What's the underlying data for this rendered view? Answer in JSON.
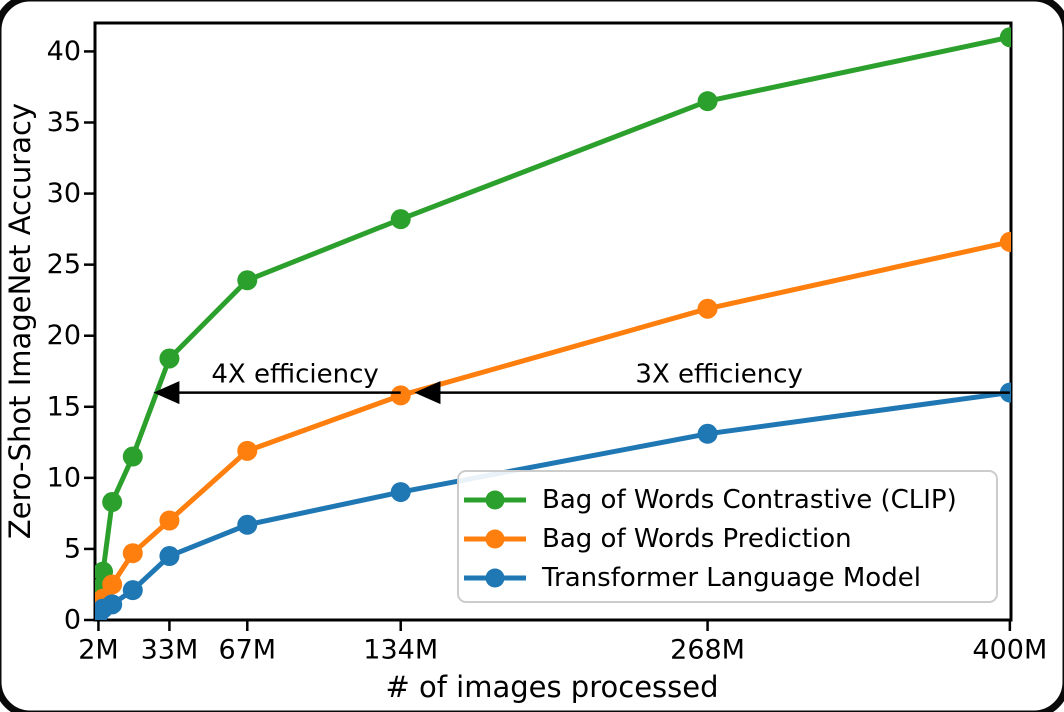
{
  "figure": {
    "background": "#ffffff",
    "border_color": "#000000",
    "text_color": "#000000"
  },
  "chart_data": {
    "type": "line",
    "title": "",
    "xlabel": "# of images processed",
    "ylabel": "Zero-Shot ImageNet Accuracy",
    "x_unit": "millions of images",
    "x_millions": [
      2,
      4,
      8,
      17,
      33,
      67,
      134,
      268,
      400
    ],
    "x_tick_values": [
      2,
      33,
      67,
      134,
      268,
      400
    ],
    "x_tick_labels": [
      "2M",
      "33M",
      "67M",
      "134M",
      "268M",
      "400M"
    ],
    "y_tick_values": [
      0,
      5,
      10,
      15,
      20,
      25,
      30,
      35,
      40
    ],
    "xlim_millions": [
      0.5,
      400.5
    ],
    "ylim": [
      0,
      42
    ],
    "grid": false,
    "legend_position": "lower right",
    "series": [
      {
        "name": "Bag of Words Contrastive (CLIP)",
        "color": "#2ca02c",
        "values": [
          2.2,
          3.4,
          8.3,
          11.5,
          18.4,
          23.9,
          28.2,
          36.5,
          41.0
        ]
      },
      {
        "name": "Bag of Words Prediction",
        "color": "#ff7f0e",
        "values": [
          1.0,
          1.5,
          2.5,
          4.7,
          7.0,
          11.9,
          15.8,
          21.9,
          26.6
        ]
      },
      {
        "name": "Transformer Language Model",
        "color": "#1f77b4",
        "values": [
          0.4,
          0.8,
          1.1,
          2.1,
          4.5,
          6.7,
          9.0,
          13.1,
          16.0
        ]
      }
    ],
    "annotations": [
      {
        "text": "4X efficiency",
        "arrow_y": 16,
        "arrow_from_x_millions": 134,
        "arrow_to_x_millions": 26
      },
      {
        "text": "3X efficiency",
        "arrow_y": 16,
        "arrow_from_x_millions": 400,
        "arrow_to_x_millions": 140
      }
    ]
  }
}
